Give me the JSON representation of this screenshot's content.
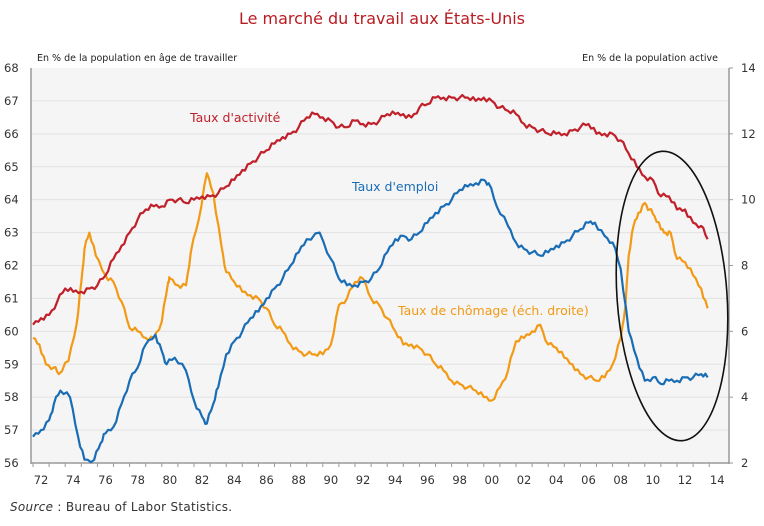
{
  "chart_data": {
    "type": "line",
    "title": "Le marché du travail aux États-Unis",
    "ylabel_left": "En % de la population en âge de travailler",
    "ylabel_right": "En % de la population active",
    "ylim_left": [
      56,
      68
    ],
    "ylim_right": [
      2,
      14
    ],
    "yticks_left": [
      "56",
      "57",
      "58",
      "59",
      "60",
      "61",
      "62",
      "63",
      "64",
      "65",
      "66",
      "67",
      "68"
    ],
    "yticks_right": [
      "2",
      "4",
      "6",
      "8",
      "10",
      "12",
      "14"
    ],
    "xlim": [
      1972,
      2014.4
    ],
    "xticks": [
      "72",
      "74",
      "76",
      "78",
      "80",
      "82",
      "84",
      "86",
      "88",
      "90",
      "92",
      "94",
      "96",
      "98",
      "00",
      "02",
      "04",
      "06",
      "08",
      "10",
      "12",
      "14"
    ],
    "grid": true,
    "annotation": "ellipse highlighting 2009-2014",
    "source_prefix": "Source",
    "source_text": " : Bureau of Labor Statistics.",
    "series": [
      {
        "name": "Taux d'activité",
        "axis": "left",
        "color": "#c0202a",
        "x": [
          1972,
          1972.5,
          1973,
          1973.5,
          1974,
          1974.5,
          1975,
          1975.5,
          1976,
          1976.5,
          1977,
          1977.5,
          1978,
          1978.5,
          1979,
          1979.5,
          1980,
          1980.5,
          1981,
          1981.5,
          1982,
          1982.5,
          1983,
          1983.5,
          1984,
          1984.5,
          1985,
          1985.5,
          1986,
          1986.5,
          1987,
          1987.5,
          1988,
          1988.5,
          1989,
          1989.5,
          1990,
          1990.5,
          1991,
          1991.5,
          1992,
          1992.5,
          1993,
          1993.5,
          1994,
          1994.5,
          1995,
          1995.5,
          1996,
          1996.5,
          1997,
          1997.5,
          1998,
          1998.5,
          1999,
          1999.5,
          2000,
          2000.5,
          2001,
          2001.5,
          2002,
          2002.5,
          2003,
          2003.5,
          2004,
          2004.5,
          2005,
          2005.5,
          2006,
          2006.5,
          2007,
          2007.5,
          2008,
          2008.5,
          2009,
          2009.5,
          2010,
          2010.5,
          2011,
          2011.5,
          2012,
          2012.5,
          2013,
          2013.5,
          2013.9
        ],
        "values": [
          60.2,
          60.4,
          60.5,
          60.9,
          61.3,
          61.2,
          61.2,
          61.3,
          61.4,
          61.7,
          62.2,
          62.6,
          63.0,
          63.4,
          63.7,
          63.8,
          63.8,
          64.0,
          64.0,
          63.9,
          64.0,
          64.1,
          64.1,
          64.2,
          64.4,
          64.6,
          64.9,
          65.1,
          65.3,
          65.5,
          65.7,
          65.9,
          66.0,
          66.2,
          66.5,
          66.6,
          66.5,
          66.4,
          66.2,
          66.2,
          66.4,
          66.3,
          66.3,
          66.4,
          66.6,
          66.6,
          66.6,
          66.5,
          66.8,
          66.9,
          67.1,
          67.1,
          67.1,
          67.1,
          67.1,
          67.0,
          67.1,
          67.0,
          66.8,
          66.7,
          66.6,
          66.3,
          66.2,
          66.1,
          66.0,
          66.0,
          66.0,
          66.1,
          66.2,
          66.3,
          66.0,
          66.0,
          66.0,
          65.8,
          65.4,
          65.0,
          64.7,
          64.6,
          64.1,
          64.1,
          63.7,
          63.7,
          63.3,
          63.2,
          62.8
        ]
      },
      {
        "name": "Taux d'emploi",
        "axis": "left",
        "color": "#1a6db5",
        "x": [
          1972,
          1972.5,
          1973,
          1973.3,
          1973.7,
          1974.3,
          1974.8,
          1975.2,
          1975.8,
          1976.2,
          1976.5,
          1977,
          1977.5,
          1978,
          1978.5,
          1979,
          1979.6,
          1980,
          1980.3,
          1980.8,
          1981.5,
          1982,
          1982.5,
          1982.8,
          1983.2,
          1983.5,
          1984,
          1984.5,
          1985,
          1985.5,
          1986,
          1986.5,
          1987,
          1987.5,
          1988,
          1988.5,
          1989,
          1989.8,
          1990.5,
          1991,
          1991.5,
          1992,
          1992.5,
          1993,
          1993.5,
          1994,
          1994.5,
          1995,
          1995.5,
          1996,
          1996.5,
          1997,
          1997.5,
          1998,
          1998.5,
          1999,
          1999.5,
          2000,
          2000.3,
          2000.8,
          2001.5,
          2002,
          2002.5,
          2003,
          2003.5,
          2004,
          2004.5,
          2005,
          2005.5,
          2006,
          2006.5,
          2006.9,
          2007.5,
          2008,
          2008.5,
          2009,
          2009.5,
          2010,
          2010.5,
          2011,
          2011.5,
          2012,
          2012.5,
          2013,
          2013.5,
          2013.9
        ],
        "values": [
          56.8,
          57.0,
          57.3,
          57.8,
          58.2,
          58.0,
          56.8,
          56.1,
          56.1,
          56.6,
          56.9,
          57.1,
          57.8,
          58.5,
          58.9,
          59.6,
          59.9,
          59.4,
          59.0,
          59.2,
          58.8,
          57.9,
          57.4,
          57.2,
          57.8,
          58.3,
          59.3,
          59.7,
          60.0,
          60.4,
          60.6,
          61.0,
          61.3,
          61.6,
          62.0,
          62.4,
          62.8,
          63.0,
          62.2,
          61.6,
          61.4,
          61.4,
          61.5,
          61.6,
          61.9,
          62.4,
          62.8,
          62.9,
          62.8,
          63.0,
          63.3,
          63.6,
          63.8,
          64.0,
          64.3,
          64.4,
          64.5,
          64.6,
          64.5,
          63.8,
          63.2,
          62.7,
          62.5,
          62.4,
          62.3,
          62.4,
          62.6,
          62.7,
          62.9,
          63.1,
          63.3,
          63.3,
          62.9,
          62.7,
          61.9,
          60.0,
          59.2,
          58.5,
          58.6,
          58.4,
          58.5,
          58.5,
          58.6,
          58.6,
          58.7,
          58.6
        ]
      },
      {
        "name": "Taux de chômage (éch. droite)",
        "axis": "right",
        "color": "#f29a16",
        "x": [
          1972,
          1972.4,
          1972.8,
          1973.3,
          1973.6,
          1974.2,
          1974.7,
          1975.0,
          1975.2,
          1975.5,
          1975.9,
          1976.5,
          1977,
          1977.5,
          1978,
          1978.5,
          1979,
          1979.5,
          1980,
          1980.4,
          1980.5,
          1981,
          1981.5,
          1981.8,
          1982.3,
          1982.8,
          1983.2,
          1983.7,
          1984,
          1984.5,
          1985,
          1985.5,
          1986,
          1986.5,
          1987,
          1987.5,
          1988,
          1988.5,
          1989,
          1989.5,
          1990,
          1990.5,
          1991,
          1991.5,
          1992,
          1992.5,
          1993,
          1993.5,
          1994,
          1994.5,
          1995,
          1995.5,
          1996,
          1996.5,
          1997,
          1997.5,
          1998,
          1998.5,
          1999,
          1999.5,
          2000,
          2000.5,
          2001,
          2001.5,
          2002,
          2002.5,
          2003,
          2003.5,
          2004,
          2004.5,
          2005,
          2005.5,
          2006,
          2006.5,
          2007,
          2007.5,
          2008,
          2008.5,
          2008.8,
          2009,
          2009.3,
          2009.6,
          2010,
          2010.3,
          2010.6,
          2011,
          2011.3,
          2011.6,
          2012,
          2012.5,
          2013,
          2013.5,
          2013.9
        ],
        "values": [
          5.8,
          5.6,
          5.0,
          4.9,
          4.7,
          5.1,
          6.2,
          7.5,
          8.5,
          9.0,
          8.3,
          7.7,
          7.5,
          6.9,
          6.1,
          6.0,
          5.8,
          5.8,
          6.3,
          7.5,
          7.6,
          7.4,
          7.4,
          8.4,
          9.4,
          10.8,
          10.2,
          8.6,
          7.8,
          7.5,
          7.2,
          7.1,
          7.0,
          6.7,
          6.2,
          6.0,
          5.6,
          5.4,
          5.3,
          5.3,
          5.3,
          5.6,
          6.8,
          7.0,
          7.5,
          7.6,
          7.0,
          6.8,
          6.4,
          6.0,
          5.6,
          5.6,
          5.5,
          5.3,
          5.0,
          4.8,
          4.5,
          4.4,
          4.3,
          4.2,
          4.0,
          3.9,
          4.3,
          4.8,
          5.7,
          5.8,
          6.0,
          6.2,
          5.6,
          5.5,
          5.2,
          5.0,
          4.7,
          4.6,
          4.5,
          4.6,
          5.0,
          5.8,
          6.8,
          8.3,
          9.2,
          9.6,
          9.9,
          9.7,
          9.5,
          9.1,
          9.0,
          9.0,
          8.2,
          8.1,
          7.7,
          7.3,
          6.7
        ]
      }
    ]
  }
}
